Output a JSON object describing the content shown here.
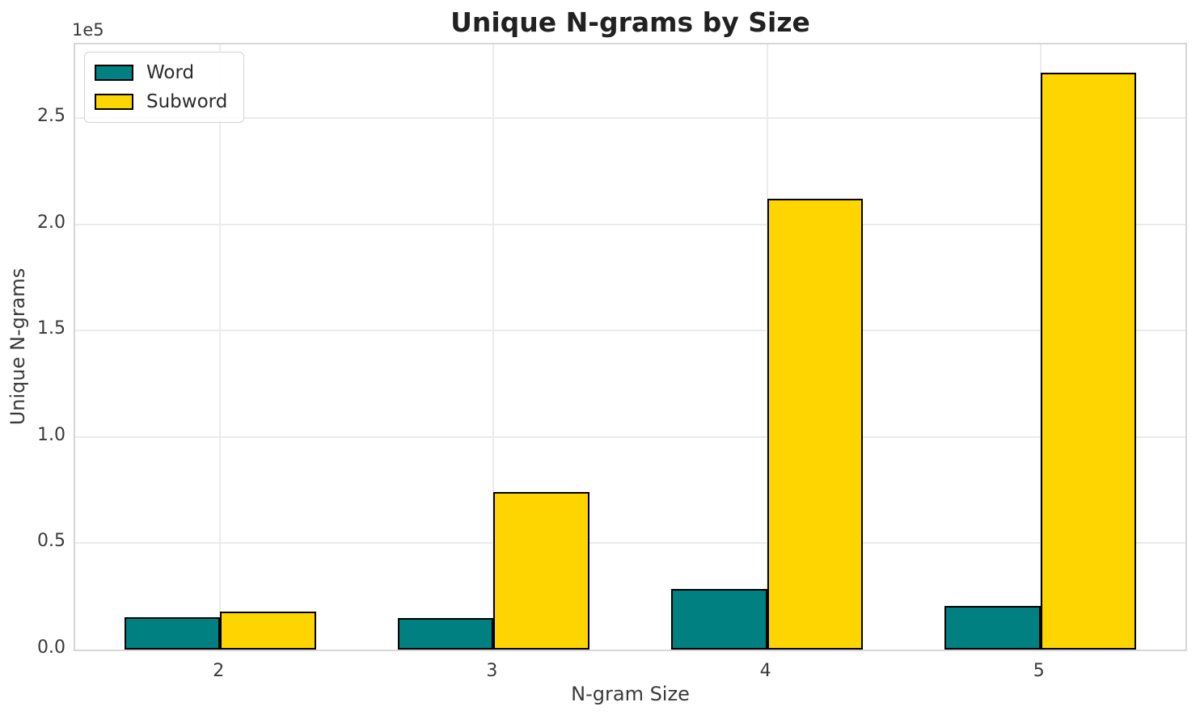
{
  "chart_data": {
    "type": "bar",
    "title": "Unique N-grams by Size",
    "xlabel": "N-gram Size",
    "ylabel": "Unique N-grams",
    "y_offset_text": "1e5",
    "categories": [
      "2",
      "3",
      "4",
      "5"
    ],
    "series": [
      {
        "name": "Word",
        "color": "#008080",
        "values": [
          15300,
          15000,
          28600,
          20700
        ]
      },
      {
        "name": "Subword",
        "color": "#FFD500",
        "values": [
          17900,
          74200,
          212000,
          271200
        ]
      }
    ],
    "bar_edge_color": "#000000",
    "bar_width_units": 0.35,
    "xlim": [
      -0.53,
      3.53
    ],
    "ylim": [
      0,
      284600
    ],
    "y_ticks": {
      "values": [
        0,
        50000,
        100000,
        150000,
        200000,
        250000
      ],
      "labels": [
        "0.0",
        "0.5",
        "1.0",
        "1.5",
        "2.0",
        "2.5"
      ]
    },
    "grid": true,
    "legend_position": "upper left"
  }
}
